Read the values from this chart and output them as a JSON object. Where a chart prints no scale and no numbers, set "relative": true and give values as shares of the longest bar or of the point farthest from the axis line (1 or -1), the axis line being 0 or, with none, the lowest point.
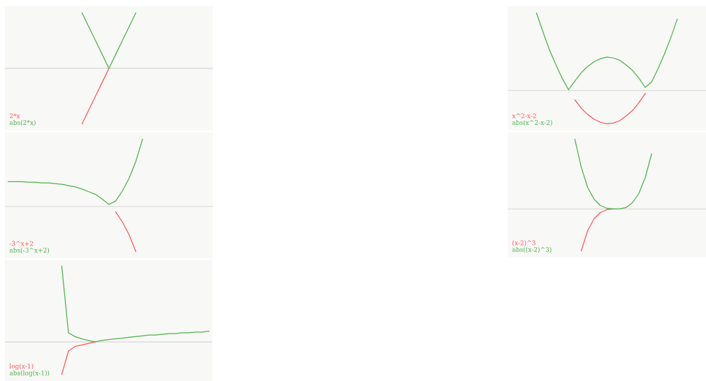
{
  "chart_data": [
    {
      "type": "line",
      "relative": true,
      "tick_labels": false,
      "legend": "bottom left",
      "marker": "none",
      "line_style": "solid",
      "categories": [
        null,
        null,
        null,
        null,
        null,
        null,
        null,
        null,
        null,
        null,
        null,
        null,
        null,
        null,
        null,
        null,
        null,
        null,
        null,
        null,
        null,
        null,
        null,
        null,
        null,
        null,
        null,
        null,
        null,
        null,
        null
      ],
      "series": [
        {
          "name": "2*x",
          "color": "#ff5555",
          "values": [
            null,
            null,
            null,
            null,
            null,
            null,
            null,
            null,
            null,
            null,
            null,
            -1,
            -0.75,
            -0.5,
            -0.25,
            0,
            null,
            null,
            null,
            null,
            null,
            null,
            null,
            null,
            null,
            null,
            null,
            null,
            null,
            null,
            null
          ]
        },
        {
          "name": "abs(2*x)",
          "color": "#4cb34c",
          "values": [
            null,
            null,
            null,
            null,
            null,
            null,
            null,
            null,
            null,
            null,
            null,
            1,
            0.75,
            0.5,
            0.25,
            0,
            0.25,
            0.5,
            0.75,
            1,
            null,
            null,
            null,
            null,
            null,
            null,
            null,
            null,
            null,
            null,
            null
          ]
        }
      ]
    },
    {
      "type": "line",
      "relative": true,
      "tick_labels": false,
      "legend": "bottom left",
      "marker": "none",
      "line_style": "solid",
      "categories": [
        null,
        null,
        null,
        null,
        null,
        null,
        null,
        null,
        null,
        null,
        null,
        null,
        null,
        null,
        null,
        null,
        null,
        null,
        null,
        null,
        null,
        null,
        null,
        null,
        null,
        null,
        null,
        null,
        null,
        null,
        null
      ],
      "series": [
        {
          "name": "x^2-x-2",
          "color": "#ff5555",
          "values": [
            null,
            null,
            null,
            null,
            null,
            null,
            null,
            null,
            null,
            null,
            -0.12,
            -0.23,
            -0.31,
            -0.37,
            -0.41,
            -0.43,
            -0.42,
            -0.39,
            -0.33,
            -0.26,
            -0.16,
            -0.04,
            null,
            null,
            null,
            null,
            null,
            null,
            null,
            null,
            null
          ]
        },
        {
          "name": "abs(x^2-x-2)",
          "color": "#4cb34c",
          "values": [
            null,
            null,
            null,
            null,
            1,
            0.76,
            0.53,
            0.34,
            0.16,
            0.01,
            0.12,
            0.23,
            0.31,
            0.37,
            0.41,
            0.43,
            0.42,
            0.39,
            0.33,
            0.26,
            0.16,
            0.04,
            0.11,
            0.28,
            0.47,
            0.68,
            0.92,
            null,
            null,
            null,
            null
          ]
        }
      ]
    },
    {
      "type": "line",
      "relative": true,
      "tick_labels": false,
      "legend": "bottom left",
      "marker": "none",
      "line_style": "solid",
      "categories": [
        null,
        null,
        null,
        null,
        null,
        null,
        null,
        null,
        null,
        null,
        null,
        null,
        null,
        null,
        null,
        null,
        null,
        null,
        null,
        null,
        null,
        null,
        null,
        null,
        null,
        null,
        null,
        null,
        null,
        null,
        null
      ],
      "series": [
        {
          "name": "-3^x+2",
          "color": "#ff5555",
          "values": [
            null,
            null,
            null,
            null,
            null,
            null,
            null,
            null,
            null,
            null,
            null,
            null,
            null,
            null,
            null,
            null,
            -0.08,
            -0.23,
            -0.42,
            -0.67,
            null,
            null,
            null,
            null,
            null,
            null,
            null,
            null,
            null,
            null,
            null
          ]
        },
        {
          "name": "abs(-3^x+2)",
          "color": "#4cb34c",
          "values": [
            0.37,
            0.37,
            0.37,
            0.36,
            0.36,
            0.35,
            0.35,
            0.34,
            0.33,
            0.31,
            0.29,
            0.26,
            0.22,
            0.18,
            0.11,
            0.03,
            0.08,
            0.23,
            0.42,
            0.67,
            1,
            null,
            null,
            null,
            null,
            null,
            null,
            null,
            null,
            null,
            null
          ]
        }
      ]
    },
    {
      "type": "line",
      "relative": true,
      "tick_labels": false,
      "legend": "bottom left",
      "marker": "none",
      "line_style": "solid",
      "categories": [
        null,
        null,
        null,
        null,
        null,
        null,
        null,
        null,
        null,
        null,
        null,
        null,
        null,
        null,
        null,
        null,
        null,
        null,
        null,
        null,
        null,
        null,
        null,
        null,
        null,
        null,
        null,
        null,
        null,
        null,
        null
      ],
      "series": [
        {
          "name": "(x-2)^3",
          "color": "#ff5555",
          "values": [
            null,
            null,
            null,
            null,
            null,
            null,
            null,
            null,
            null,
            null,
            null,
            -0.6,
            -0.31,
            -0.14,
            -0.05,
            -0.01,
            0,
            null,
            null,
            null,
            null,
            null,
            null,
            null,
            null,
            null,
            null,
            null,
            null,
            null,
            null
          ]
        },
        {
          "name": "abs((x-2)^3)",
          "color": "#4cb34c",
          "values": [
            null,
            null,
            null,
            null,
            null,
            null,
            null,
            null,
            null,
            null,
            1,
            0.6,
            0.31,
            0.14,
            0.05,
            0.01,
            0,
            0,
            0.02,
            0.09,
            0.22,
            0.45,
            0.79,
            null,
            null,
            null,
            null,
            null,
            null,
            null,
            null
          ]
        }
      ]
    },
    {
      "type": "line",
      "relative": true,
      "tick_labels": false,
      "legend": "bottom left",
      "marker": "none",
      "line_style": "solid",
      "categories": [
        null,
        null,
        null,
        null,
        null,
        null,
        null,
        null,
        null,
        null,
        null,
        null,
        null,
        null,
        null,
        null,
        null,
        null,
        null,
        null,
        null,
        null,
        null,
        null,
        null,
        null,
        null,
        null,
        null,
        null,
        null
      ],
      "series": [
        {
          "name": "log(x-1)",
          "color": "#ff5555",
          "values": [
            null,
            null,
            null,
            null,
            null,
            null,
            null,
            null,
            -0.43,
            -0.12,
            -0.06,
            -0.04,
            -0.02,
            0,
            null,
            null,
            null,
            null,
            null,
            null,
            null,
            null,
            null,
            null,
            null,
            null,
            null,
            null,
            null,
            null,
            null
          ]
        },
        {
          "name": "abs(log(x-1))",
          "color": "#4cb34c",
          "values": [
            null,
            null,
            null,
            null,
            null,
            null,
            null,
            null,
            1,
            0.12,
            0.07,
            0.04,
            0.02,
            0,
            0.02,
            0.03,
            0.04,
            0.05,
            0.06,
            0.07,
            0.08,
            0.09,
            0.09,
            0.1,
            0.11,
            0.11,
            0.12,
            0.12,
            0.13,
            0.13,
            0.14
          ]
        }
      ]
    }
  ]
}
